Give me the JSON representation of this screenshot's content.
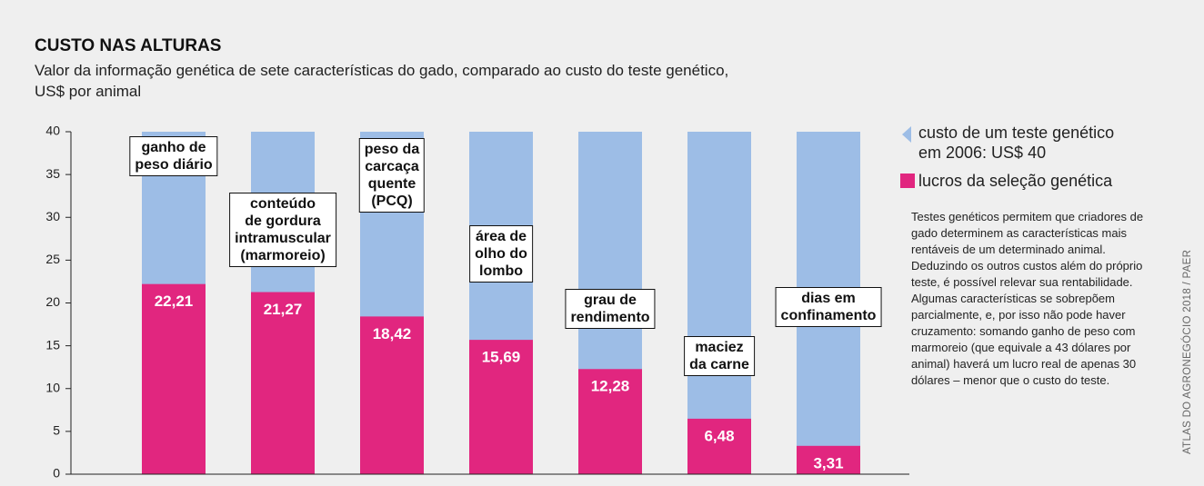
{
  "chart_data": {
    "type": "bar",
    "title": "CUSTO NAS ALTURAS",
    "subtitle": [
      "Valor da informação genética de sete características do gado, comparado ao custo do teste genético,",
      "US$ por animal"
    ],
    "categories": [
      [
        "ganho de",
        "peso diário"
      ],
      [
        "conteúdo",
        "de gordura",
        "intramuscular",
        "(marmoreio)"
      ],
      [
        "peso da",
        "carcaça",
        "quente",
        "(PCQ)"
      ],
      [
        "área de",
        "olho do",
        "lombo"
      ],
      [
        "grau de",
        "rendimento"
      ],
      [
        "maciez",
        "da carne"
      ],
      [
        "dias em",
        "confinamento"
      ]
    ],
    "series": [
      {
        "name": "custo de um teste genético em 2006: US$ 40",
        "color": "#9dbde6",
        "values": [
          40,
          40,
          40,
          40,
          40,
          40,
          40
        ]
      },
      {
        "name": "lucros da seleção genética",
        "color": "#e1267f",
        "values": [
          22.21,
          21.27,
          18.42,
          15.69,
          12.28,
          6.48,
          3.31
        ],
        "value_labels": [
          "22,21",
          "21,27",
          "18,42",
          "15,69",
          "12,28",
          "6,48",
          "3,31"
        ]
      }
    ],
    "ylim": [
      0,
      40
    ],
    "yticks": [
      0,
      5,
      10,
      15,
      20,
      25,
      30,
      35,
      40
    ],
    "note": "Testes genéticos permitem que criadores de gado determinem as características mais rentáveis de um determinado animal. Deduzindo os outros custos além do próprio teste, é possível relevar sua rentabilidade. Algumas características se sobrepõem parcialmente, e, por isso não pode haver cruzamento: somando ganho de peso com marmoreio (que equivale a 43 dólares por animal) haverá um lucro real de apenas 30 dólares – menor que o custo do teste.",
    "source": "ATLAS DO AGRONEGÓCIO 2018 / PAER"
  }
}
